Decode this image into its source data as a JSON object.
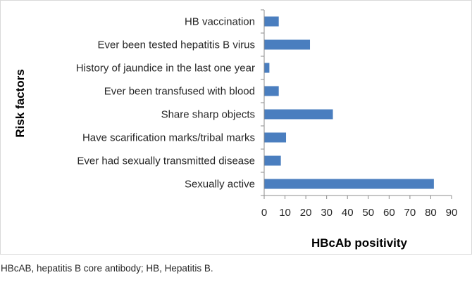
{
  "chart_data": {
    "type": "bar",
    "orientation": "horizontal",
    "categories": [
      "HB vaccination",
      "Ever been tested hepatitis B virus",
      "History of jaundice in the last one year",
      "Ever been transfused with blood",
      "Share sharp objects",
      "Have scarification marks/tribal marks",
      "Ever had sexually transmitted disease",
      "Sexually active"
    ],
    "values": [
      7,
      22,
      2.5,
      7,
      33,
      10.5,
      8,
      81.5
    ],
    "xlabel": "HBcAb positivity",
    "ylabel": "Risk factors",
    "xlim": [
      0,
      90
    ],
    "xticks": [
      0,
      10,
      20,
      30,
      40,
      50,
      60,
      70,
      80,
      90
    ],
    "grid": false,
    "legend": "none",
    "bar_color": "#4a7ebf",
    "axis_color": "#8c8c8c"
  },
  "caption": "HBcAB, hepatitis B core antibody; HB, Hepatitis B."
}
